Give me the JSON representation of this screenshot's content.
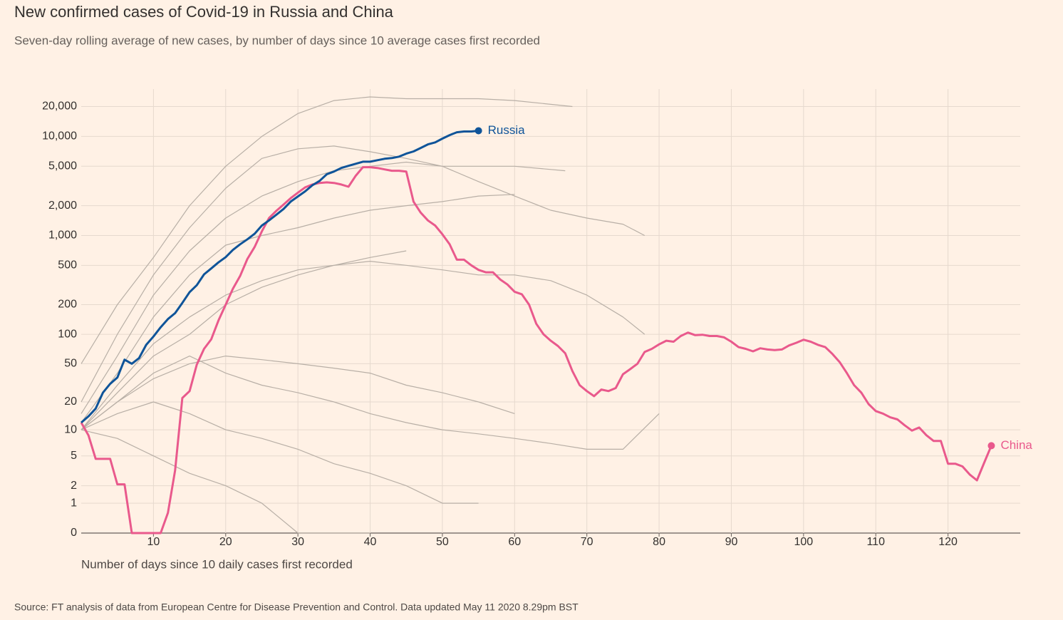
{
  "chart_data": {
    "type": "line",
    "title": "New confirmed cases of Covid-19 in Russia and China",
    "subtitle": "Seven-day rolling average of new cases, by number of days since 10 average cases first recorded",
    "x_label": "Number of days since 10 daily cases first recorded",
    "source": "Source: FT analysis of data from European Centre for Disease Prevention and Control. Data updated May 11 2020 8.29pm BST",
    "yscale": "symlog",
    "grid": true,
    "xlim": [
      0,
      130
    ],
    "xticks": [
      10,
      20,
      30,
      40,
      50,
      60,
      70,
      80,
      90,
      100,
      110,
      120
    ],
    "ylim": [
      0,
      30000
    ],
    "yticks": [
      0,
      1,
      2,
      5,
      10,
      20,
      50,
      100,
      200,
      500,
      {
        "value": 1000,
        "label": "1,000"
      },
      {
        "value": 2000,
        "label": "2,000"
      },
      {
        "value": 5000,
        "label": "5,000"
      },
      {
        "value": 10000,
        "label": "10,000"
      },
      {
        "value": 20000,
        "label": "20,000"
      }
    ],
    "series": [
      {
        "color": "#b8afa6",
        "x": [
          0,
          5,
          10,
          15,
          20,
          25,
          30,
          35,
          40,
          45,
          50,
          55,
          60,
          68
        ],
        "values": [
          50,
          200,
          600,
          2000,
          5000,
          10000,
          17000,
          23000,
          25000,
          24000,
          24000,
          24000,
          23000,
          20000
        ]
      },
      {
        "color": "#b8afa6",
        "x": [
          0,
          5,
          10,
          15,
          20,
          25,
          30,
          35,
          40,
          45,
          50,
          55,
          60,
          65,
          70,
          75,
          78
        ],
        "values": [
          20,
          100,
          400,
          1200,
          3000,
          6000,
          7500,
          8000,
          7000,
          6000,
          5000,
          3500,
          2500,
          1800,
          1500,
          1300,
          1000
        ]
      },
      {
        "color": "#b8afa6",
        "x": [
          0,
          5,
          10,
          15,
          20,
          25,
          30,
          35,
          40,
          45,
          50,
          55,
          60,
          67
        ],
        "values": [
          15,
          60,
          250,
          700,
          1500,
          2500,
          3500,
          4500,
          5000,
          5500,
          5000,
          5000,
          5000,
          4500
        ]
      },
      {
        "color": "#b8afa6",
        "x": [
          0,
          5,
          10,
          15,
          20,
          25,
          30,
          35,
          40,
          45,
          50,
          55,
          60,
          65,
          70,
          75,
          78
        ],
        "values": [
          10,
          30,
          80,
          150,
          250,
          350,
          450,
          500,
          550,
          500,
          450,
          400,
          400,
          350,
          250,
          150,
          100
        ]
      },
      {
        "color": "#b8afa6",
        "x": [
          0,
          5,
          10,
          15,
          20,
          25,
          30,
          35,
          40,
          45,
          50,
          55,
          60
        ],
        "values": [
          10,
          20,
          35,
          50,
          60,
          55,
          50,
          45,
          40,
          30,
          25,
          20,
          15
        ]
      },
      {
        "color": "#b8afa6",
        "x": [
          0,
          5,
          10,
          15,
          20,
          25,
          30,
          35,
          40,
          45,
          50,
          55
        ],
        "values": [
          10,
          15,
          20,
          15,
          10,
          8,
          6,
          4,
          3,
          2,
          1,
          1
        ]
      },
      {
        "color": "#b8afa6",
        "x": [
          0,
          5,
          10,
          15,
          20,
          25,
          30,
          35,
          40,
          45,
          50,
          55,
          60,
          65,
          70,
          75,
          80
        ],
        "values": [
          10,
          20,
          40,
          60,
          40,
          30,
          25,
          20,
          15,
          12,
          10,
          9,
          8,
          7,
          6,
          6,
          15
        ]
      },
      {
        "color": "#b8afa6",
        "x": [
          0,
          5,
          10,
          15,
          20,
          25,
          30,
          35,
          40,
          45,
          50,
          55,
          60
        ],
        "values": [
          12,
          40,
          150,
          400,
          800,
          1000,
          1200,
          1500,
          1800,
          2000,
          2200,
          2500,
          2600
        ]
      },
      {
        "color": "#b8afa6",
        "x": [
          0,
          5,
          10,
          15,
          20,
          25,
          30,
          35,
          40,
          45
        ],
        "values": [
          10,
          25,
          60,
          100,
          200,
          300,
          400,
          500,
          600,
          700
        ]
      },
      {
        "color": "#b8afa6",
        "x": [
          0,
          5,
          10,
          15,
          20,
          25,
          30,
          35,
          40
        ],
        "values": [
          10,
          8,
          5,
          3,
          2,
          1,
          0,
          0,
          0
        ]
      },
      {
        "name": "China",
        "color": "#e9598c",
        "x": [
          0,
          1,
          2,
          3,
          4,
          5,
          6,
          7,
          8,
          9,
          10,
          11,
          12,
          13,
          14,
          15,
          16,
          17,
          18,
          19,
          20,
          21,
          22,
          23,
          24,
          25,
          26,
          27,
          28,
          29,
          30,
          31,
          32,
          33,
          34,
          35,
          36,
          37,
          38,
          39,
          40,
          41,
          42,
          43,
          44,
          45,
          46,
          47,
          48,
          49,
          50,
          51,
          52,
          53,
          54,
          55,
          56,
          57,
          58,
          59,
          60,
          61,
          62,
          63,
          64,
          65,
          66,
          67,
          68,
          69,
          70,
          71,
          72,
          73,
          74,
          75,
          76,
          77,
          78,
          79,
          80,
          81,
          82,
          83,
          84,
          85,
          86,
          87,
          88,
          89,
          90,
          91,
          92,
          93,
          94,
          95,
          96,
          97,
          98,
          99,
          100,
          101,
          102,
          103,
          104,
          105,
          106,
          107,
          108,
          109,
          110,
          111,
          112,
          113,
          114,
          115,
          116,
          117,
          118,
          119,
          120,
          121,
          122,
          123,
          124,
          125,
          126
        ],
        "values": [
          12,
          8.7,
          4.6,
          4.6,
          4.6,
          2.1,
          2.1,
          0,
          0,
          0,
          0,
          0,
          0.6,
          3.3,
          22,
          26,
          49,
          71,
          89,
          138,
          200,
          290,
          390,
          580,
          765,
          1100,
          1500,
          1770,
          2050,
          2380,
          2710,
          3060,
          3270,
          3390,
          3440,
          3390,
          3270,
          3110,
          4010,
          4890,
          4890,
          4800,
          4650,
          4500,
          4500,
          4420,
          2200,
          1700,
          1420,
          1260,
          1030,
          815,
          570,
          570,
          500,
          450,
          425,
          425,
          360,
          320,
          270,
          255,
          200,
          128,
          100,
          86,
          76,
          64,
          42,
          30,
          26,
          23,
          27,
          26,
          28,
          39,
          44,
          50,
          66,
          71,
          79,
          86,
          84,
          96,
          104,
          98,
          99,
          96,
          96,
          93,
          84,
          74,
          71,
          67,
          72,
          70,
          69,
          70,
          77,
          82,
          88,
          84,
          78,
          74,
          63,
          52,
          40,
          30,
          25,
          19,
          16,
          15,
          13.7,
          13,
          11.2,
          9.8,
          10.6,
          8.7,
          7.5,
          7.5,
          4,
          4,
          3.7,
          2.9,
          2.4,
          4.1,
          6.6
        ]
      },
      {
        "name": "Russia",
        "color": "#0f5499",
        "x": [
          0,
          1,
          2,
          3,
          4,
          5,
          6,
          7,
          8,
          9,
          10,
          11,
          12,
          13,
          14,
          15,
          16,
          17,
          18,
          19,
          20,
          21,
          22,
          23,
          24,
          25,
          26,
          27,
          28,
          29,
          30,
          31,
          32,
          33,
          34,
          35,
          36,
          37,
          38,
          39,
          40,
          41,
          42,
          43,
          44,
          45,
          46,
          47,
          48,
          49,
          50,
          51,
          52,
          53,
          54,
          55
        ],
        "values": [
          12,
          14,
          17,
          25,
          31,
          36,
          55,
          50,
          57,
          78,
          95,
          118,
          143,
          164,
          208,
          268,
          315,
          405,
          465,
          535,
          605,
          715,
          815,
          915,
          1040,
          1260,
          1420,
          1620,
          1850,
          2200,
          2480,
          2790,
          3210,
          3560,
          4150,
          4420,
          4800,
          5050,
          5300,
          5560,
          5560,
          5750,
          5950,
          6050,
          6250,
          6700,
          7050,
          7650,
          8300,
          8700,
          9500,
          10300,
          11000,
          11200,
          11200,
          11400
        ]
      }
    ]
  }
}
